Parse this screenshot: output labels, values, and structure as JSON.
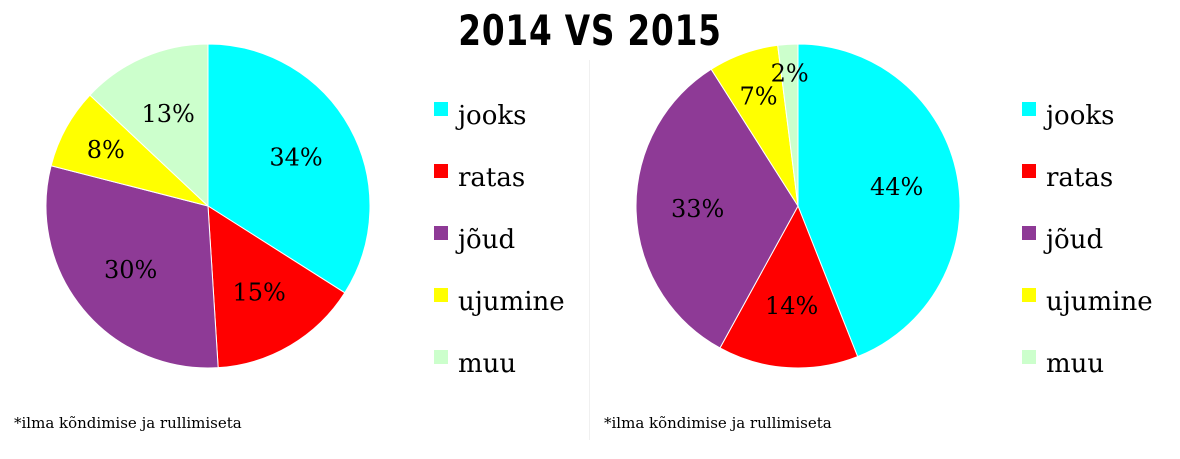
{
  "title": "2014 VS 2015",
  "footnote": "*ilma kõndimise ja rullimiseta",
  "chart_data": [
    {
      "type": "pie",
      "title": "",
      "categories": [
        "jooks",
        "ratas",
        "jõud",
        "ujumine",
        "muu"
      ],
      "values": [
        34,
        15,
        30,
        8,
        13
      ],
      "labels": [
        "34%",
        "15%",
        "30%",
        "8%",
        "13%"
      ],
      "colors": [
        "#00FFFF",
        "#FF0000",
        "#8E3A96",
        "#FFFF00",
        "#CCFFCC"
      ],
      "legend_position": "right"
    },
    {
      "type": "pie",
      "title": "",
      "categories": [
        "jooks",
        "ratas",
        "jõud",
        "ujumine",
        "muu"
      ],
      "values": [
        44,
        14,
        33,
        7,
        2
      ],
      "labels": [
        "44%",
        "14%",
        "33%",
        "7%",
        "2%"
      ],
      "colors": [
        "#00FFFF",
        "#FF0000",
        "#8E3A96",
        "#FFFF00",
        "#CCFFCC"
      ],
      "legend_position": "right"
    }
  ]
}
